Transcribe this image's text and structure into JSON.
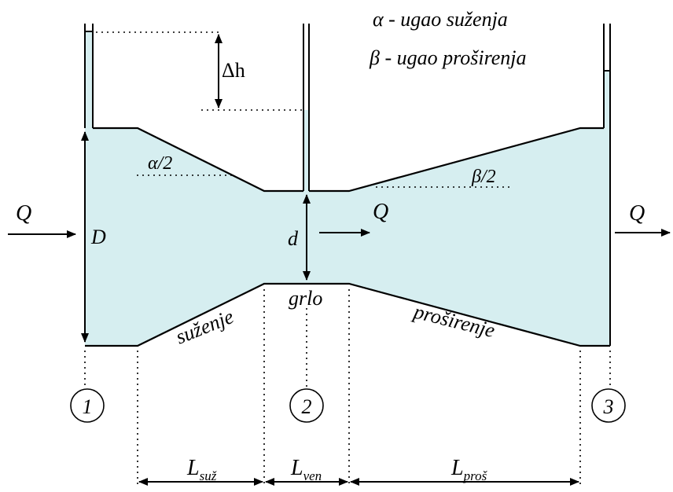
{
  "legend": {
    "alpha_line": "α - ugao suženja",
    "beta_line": "β - ugao proširenja"
  },
  "labels": {
    "delta_h": "Δh",
    "alpha_half": "α/2",
    "beta_half": "β/2",
    "flow_in": "Q",
    "flow_mid": "Q",
    "flow_out": "Q",
    "big_diameter": "D",
    "small_diameter": "d",
    "throat": "grlo",
    "contraction": "suženje",
    "expansion": "proširenje"
  },
  "sections": [
    "1",
    "2",
    "3"
  ],
  "lengths": {
    "contraction": {
      "main": "L",
      "sub": "suž"
    },
    "throat": {
      "main": "L",
      "sub": "ven"
    },
    "expansion": {
      "main": "L",
      "sub": "proš"
    }
  }
}
